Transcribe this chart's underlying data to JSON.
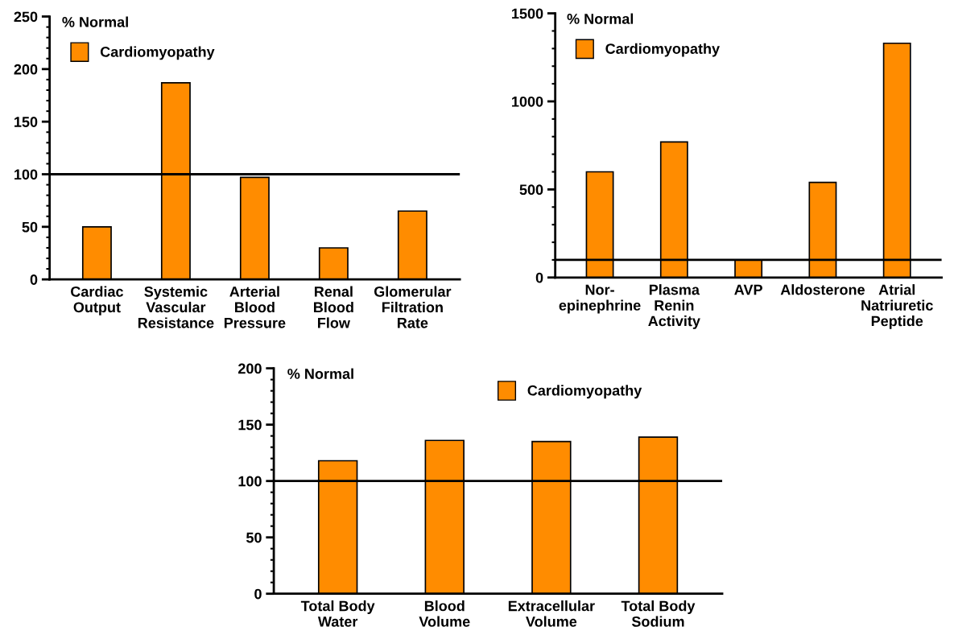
{
  "chart_data": [
    {
      "type": "bar",
      "ylabel": "% Normal",
      "legend": "top left",
      "grid": false,
      "categories": [
        "Cardiac\nOutput",
        "Systemic\nVascular\nResistance",
        "Arterial\nBlood\nPressure",
        "Renal\nBlood\nFlow",
        "Glomerular\nFiltration\nRate"
      ],
      "series": [
        {
          "name": "Cardiomyopathy",
          "color": "#ff8c00",
          "values": [
            50,
            187,
            97,
            30,
            65
          ]
        }
      ],
      "ylim": [
        0,
        250
      ],
      "yticks": [
        0,
        50,
        100,
        150,
        200,
        250,
        {
          "value": 10,
          "label": null
        },
        {
          "value": 20,
          "label": null
        },
        {
          "value": 30,
          "label": null
        },
        {
          "value": 40,
          "label": null
        },
        {
          "value": 60,
          "label": null
        },
        {
          "value": 70,
          "label": null
        },
        {
          "value": 80,
          "label": null
        },
        {
          "value": 90,
          "label": null
        },
        {
          "value": 110,
          "label": null
        },
        {
          "value": 120,
          "label": null
        },
        {
          "value": 130,
          "label": null
        },
        {
          "value": 140,
          "label": null
        },
        {
          "value": 160,
          "label": null
        },
        {
          "value": 170,
          "label": null
        },
        {
          "value": 180,
          "label": null
        },
        {
          "value": 190,
          "label": null
        },
        {
          "value": 210,
          "label": null
        },
        {
          "value": 220,
          "label": null
        },
        {
          "value": 230,
          "label": null
        },
        {
          "value": 240,
          "label": null
        }
      ],
      "ref_lines": [
        {
          "axis": "y",
          "value": 100,
          "color": "#000000"
        }
      ]
    },
    {
      "type": "bar",
      "ylabel": "% Normal",
      "legend": "top left",
      "grid": false,
      "categories": [
        "Nor-\nepinephrine",
        "Plasma\nRenin\nActivity",
        "AVP",
        "Aldosterone",
        "Atrial\nNatriuretic\nPeptide"
      ],
      "series": [
        {
          "name": "Cardiomyopathy",
          "color": "#ff8c00",
          "values": [
            600,
            770,
            100,
            540,
            1330
          ]
        }
      ],
      "ylim": [
        0,
        1500
      ],
      "yticks": [
        0,
        500,
        1000,
        1500,
        {
          "value": 100,
          "label": null
        },
        {
          "value": 200,
          "label": null
        },
        {
          "value": 300,
          "label": null
        },
        {
          "value": 400,
          "label": null
        },
        {
          "value": 600,
          "label": null
        },
        {
          "value": 700,
          "label": null
        },
        {
          "value": 800,
          "label": null
        },
        {
          "value": 900,
          "label": null
        },
        {
          "value": 1100,
          "label": null
        },
        {
          "value": 1200,
          "label": null
        },
        {
          "value": 1300,
          "label": null
        },
        {
          "value": 1400,
          "label": null
        }
      ],
      "ref_lines": [
        {
          "axis": "y",
          "value": 100,
          "color": "#000000"
        }
      ]
    },
    {
      "type": "bar",
      "ylabel": "% Normal",
      "legend": "top right",
      "grid": false,
      "categories": [
        "Total Body\nWater",
        "Blood\nVolume",
        "Extracellular\nVolume",
        "Total Body\nSodium"
      ],
      "series": [
        {
          "name": "Cardiomyopathy",
          "color": "#ff8c00",
          "values": [
            118,
            136,
            135,
            139
          ]
        }
      ],
      "ylim": [
        0,
        200
      ],
      "yticks": [
        0,
        50,
        100,
        150,
        200,
        {
          "value": 10,
          "label": null
        },
        {
          "value": 20,
          "label": null
        },
        {
          "value": 30,
          "label": null
        },
        {
          "value": 40,
          "label": null
        },
        {
          "value": 60,
          "label": null
        },
        {
          "value": 70,
          "label": null
        },
        {
          "value": 80,
          "label": null
        },
        {
          "value": 90,
          "label": null
        },
        {
          "value": 110,
          "label": null
        },
        {
          "value": 120,
          "label": null
        },
        {
          "value": 130,
          "label": null
        },
        {
          "value": 140,
          "label": null
        },
        {
          "value": 160,
          "label": null
        },
        {
          "value": 170,
          "label": null
        },
        {
          "value": 180,
          "label": null
        },
        {
          "value": 190,
          "label": null
        }
      ],
      "ref_lines": [
        {
          "axis": "y",
          "value": 100,
          "color": "#000000"
        }
      ]
    }
  ]
}
